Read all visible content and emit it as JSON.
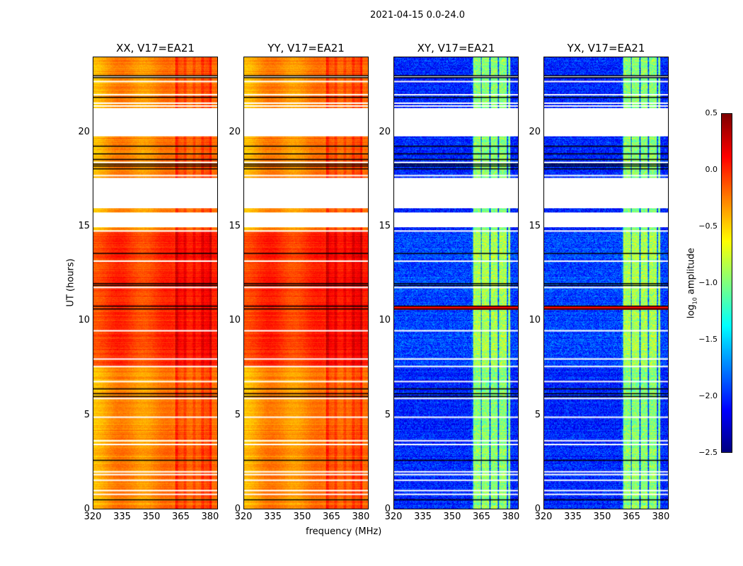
{
  "figure_title": "2021-04-15 0.0-24.0",
  "chart_data": {
    "type": "heatmap",
    "xlabel": "frequency (MHz)",
    "ylabel": "UT (hours)",
    "xlim": [
      320,
      384
    ],
    "ylim": [
      0,
      24
    ],
    "xticks": [
      "320",
      "335",
      "350",
      "365",
      "380"
    ],
    "yticks": [
      "0",
      "5",
      "10",
      "15",
      "20"
    ],
    "colorbar": {
      "label_prefix": "log",
      "label_sub": "10",
      "label_suffix": " amplitude",
      "range": [
        -2.5,
        0.5
      ],
      "ticks": [
        "0.5",
        "0.0",
        "−0.5",
        "−1.0",
        "−1.5",
        "−2.0",
        "−2.5"
      ],
      "colormap": "jet"
    },
    "flagged_hours": [
      [
        19.8,
        21.3
      ],
      [
        16.0,
        17.6
      ],
      [
        15.0,
        15.75
      ]
    ],
    "blank_rows": [
      21.45,
      21.6,
      22.05,
      22.75,
      23.0,
      18.45,
      17.75,
      14.8,
      13.2,
      11.8,
      9.5,
      8.0,
      7.6,
      6.8,
      5.9,
      4.9,
      3.65,
      3.45,
      2.0,
      1.85,
      1.55,
      1.0,
      0.8
    ],
    "dark_rows": [
      23.05,
      22.95,
      21.9,
      19.3,
      18.9,
      18.6,
      18.35,
      18.25,
      18.1,
      13.6,
      12.0,
      11.9,
      10.8,
      10.65,
      6.4,
      6.15,
      6.0,
      2.6,
      0.5
    ],
    "panels": [
      {
        "title": "XX, V17=EA21",
        "base": -0.35,
        "day_level": -0.12,
        "band": [
          362,
          381
        ],
        "band_boost": 0.15
      },
      {
        "title": "YY, V17=EA21",
        "base": -0.35,
        "day_level": -0.1,
        "band": [
          362,
          381
        ],
        "band_boost": 0.15
      },
      {
        "title": "XY, V17=EA21",
        "base": -2.1,
        "day_level": -2.0,
        "band": [
          360,
          380
        ],
        "band_boost": 1.05
      },
      {
        "title": "YX, V17=EA21",
        "base": -2.1,
        "day_level": -2.0,
        "band": [
          360,
          380
        ],
        "band_boost": 1.05
      }
    ]
  }
}
